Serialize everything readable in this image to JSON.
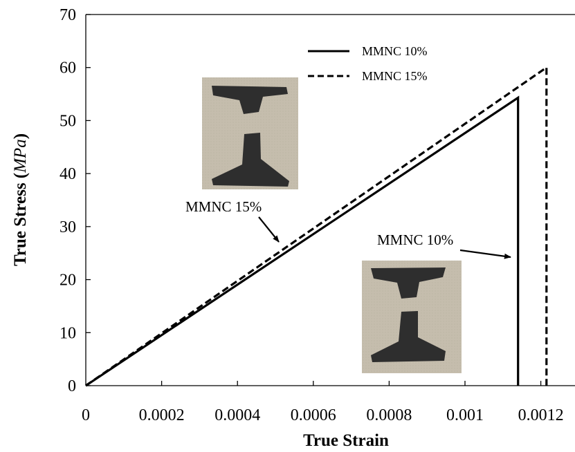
{
  "chart_data": {
    "type": "line",
    "xlabel": "True Strain",
    "ylabel_main": "True Stress (",
    "ylabel_unit": "MPa",
    "ylabel_end": ")",
    "xlim": [
      0,
      0.00128
    ],
    "ylim": [
      0,
      70
    ],
    "x_ticks": [
      {
        "value": 0,
        "label": "0"
      },
      {
        "value": 0.0002,
        "label": "0.0002"
      },
      {
        "value": 0.0004,
        "label": "0.0004"
      },
      {
        "value": 0.0006,
        "label": "0.0006"
      },
      {
        "value": 0.0008,
        "label": "0.0008"
      },
      {
        "value": 0.001,
        "label": "0.001"
      },
      {
        "value": 0.0012,
        "label": "0.0012"
      }
    ],
    "y_ticks": [
      {
        "value": 0,
        "label": "0"
      },
      {
        "value": 10,
        "label": "10"
      },
      {
        "value": 20,
        "label": "20"
      },
      {
        "value": 30,
        "label": "30"
      },
      {
        "value": 40,
        "label": "40"
      },
      {
        "value": 50,
        "label": "50"
      },
      {
        "value": 60,
        "label": "60"
      },
      {
        "value": 70,
        "label": "70"
      }
    ],
    "grid": false,
    "legend_position": "top-right",
    "series": [
      {
        "name": "MMNC 10%",
        "style": "solid",
        "color": "#000000",
        "x": [
          0,
          0.00114,
          0.00114
        ],
        "y": [
          0,
          54.3,
          0
        ]
      },
      {
        "name": "MMNC 15%",
        "style": "dashed",
        "color": "#000000",
        "x": [
          0,
          0.001215,
          0.001215
        ],
        "y": [
          0,
          60,
          0
        ]
      }
    ],
    "annotations": [
      {
        "text": "MMNC 15%",
        "target_x": 0.00052,
        "target_y": 26.5
      },
      {
        "text": "MMNC 10%",
        "target_x": 0.00113,
        "target_y": 24.5
      }
    ]
  }
}
